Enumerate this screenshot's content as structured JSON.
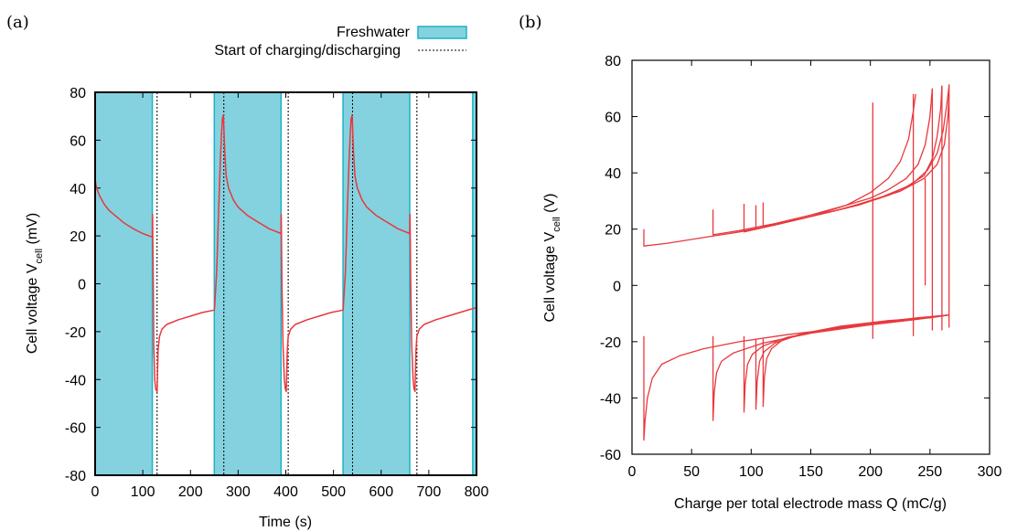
{
  "figure": {
    "panel_a_label": "(a)",
    "panel_b_label": "(b)"
  },
  "colors": {
    "curve": "#e8383d",
    "freshwater_fill": "#84d2e0",
    "freshwater_edge": "#1eb3c5",
    "axis": "#000000"
  },
  "chart_data": [
    {
      "type": "line",
      "panel": "(a)",
      "xlabel": "Time (s)",
      "ylabel_main": "Cell voltage V",
      "ylabel_sub": "cell",
      "ylabel_unit": " (mV)",
      "xlim": [
        0,
        800
      ],
      "ylim": [
        -80,
        80
      ],
      "xticks": [
        0,
        100,
        200,
        300,
        400,
        500,
        600,
        700,
        800
      ],
      "yticks": [
        -80,
        -60,
        -40,
        -20,
        0,
        20,
        40,
        60,
        80
      ],
      "legend": {
        "placement": "top-right, outside",
        "entries": [
          "Freshwater",
          "Start of charging/discharging"
        ]
      },
      "freshwater_intervals": [
        [
          0,
          120
        ],
        [
          250,
          390
        ],
        [
          520,
          660
        ],
        [
          792,
          800
        ]
      ],
      "start_lines": [
        130,
        270,
        405,
        540,
        675
      ],
      "series": [
        {
          "x": [
            0,
            2,
            5,
            10,
            20,
            30,
            45,
            60,
            80,
            100,
            120,
            120.5,
            122,
            123,
            125,
            127,
            130,
            132,
            135,
            140,
            150,
            175,
            200,
            225,
            250,
            250.5,
            255,
            259,
            262,
            265,
            267,
            269,
            272,
            275,
            280,
            290,
            300,
            320,
            340,
            365,
            390,
            390.5,
            392,
            394,
            397,
            399,
            401,
            403,
            405,
            410,
            420,
            445,
            470,
            495,
            520,
            520.5,
            525,
            529,
            532,
            535,
            537,
            539,
            542,
            545,
            550,
            560,
            570,
            590,
            610,
            635,
            660,
            660.5,
            662,
            664,
            667,
            669,
            671,
            673,
            675,
            680,
            690,
            715,
            740,
            765,
            790,
            800
          ],
          "y": [
            44,
            41,
            39,
            36.5,
            33,
            30.5,
            28,
            25.5,
            23,
            21,
            19.5,
            29,
            0,
            -25,
            -40,
            -44,
            -45,
            -28,
            -22,
            -19,
            -17,
            -15,
            -13.5,
            -12,
            -11,
            -10,
            5,
            30,
            48,
            62,
            69,
            70.5,
            55,
            45,
            40,
            35,
            32,
            28.5,
            26,
            23,
            21,
            29,
            0,
            -25,
            -40,
            -44,
            -45,
            -28,
            -22,
            -19,
            -17,
            -15,
            -13.5,
            -12,
            -11,
            -10,
            5,
            30,
            48,
            62,
            69,
            70.5,
            55,
            45,
            40,
            35,
            32,
            28.5,
            26,
            23,
            21,
            29,
            0,
            -25,
            -40,
            -44,
            -45,
            -28,
            -22,
            -19,
            -17,
            -15,
            -13.5,
            -12,
            -10.5,
            -10
          ]
        }
      ]
    },
    {
      "type": "line",
      "panel": "(b)",
      "xlabel": "Charge per total electrode mass Q (mC/g)",
      "ylabel_main": "Cell voltage V",
      "ylabel_sub": "cell",
      "ylabel_unit": " (V)",
      "xlim": [
        0,
        300
      ],
      "ylim": [
        -60,
        80
      ],
      "xticks": [
        0,
        50,
        100,
        150,
        200,
        250,
        300
      ],
      "yticks": [
        -60,
        -40,
        -20,
        0,
        20,
        40,
        60,
        80
      ],
      "series": [
        {
          "x": [
            10,
            10,
            30,
            60,
            90,
            120,
            150,
            180,
            200,
            215,
            225,
            232,
            236,
            238
          ],
          "y": [
            20,
            14,
            15,
            17,
            19,
            21.5,
            24.5,
            28.5,
            33,
            38,
            44,
            52,
            62,
            68
          ]
        },
        {
          "x": [
            68,
            68,
            90,
            120,
            150,
            180,
            200,
            215,
            230,
            240,
            246,
            250,
            252
          ],
          "y": [
            27,
            18,
            19.5,
            22,
            25,
            28.5,
            31,
            34,
            38,
            43,
            50,
            60,
            70
          ]
        },
        {
          "x": [
            94,
            94,
            120,
            150,
            180,
            210,
            230,
            245,
            252,
            256,
            259,
            260
          ],
          "y": [
            29,
            19,
            21.5,
            24.5,
            27.5,
            31.5,
            35,
            39,
            45,
            53,
            63,
            71
          ]
        },
        {
          "x": [
            104,
            104,
            130,
            160,
            190,
            215,
            235,
            248,
            256,
            261,
            264,
            266
          ],
          "y": [
            28.5,
            20,
            22.5,
            25.5,
            28.5,
            32,
            36,
            41,
            47,
            55,
            64,
            71
          ]
        },
        {
          "x": [
            110,
            110,
            140,
            170,
            200,
            225,
            245,
            256,
            262,
            265,
            266
          ],
          "y": [
            29.5,
            21,
            23.5,
            26.5,
            30,
            33.5,
            38,
            43,
            50,
            60,
            68
          ]
        },
        {
          "x": [
            202,
            202
          ],
          "y": [
            65,
            -19
          ]
        },
        {
          "x": [
            236,
            236
          ],
          "y": [
            68,
            -18
          ]
        },
        {
          "x": [
            246,
            246
          ],
          "y": [
            0,
            38
          ]
        },
        {
          "x": [
            252,
            252
          ],
          "y": [
            70,
            -16
          ]
        },
        {
          "x": [
            260,
            260
          ],
          "y": [
            71,
            -16
          ]
        },
        {
          "x": [
            266,
            266
          ],
          "y": [
            71.5,
            -15
          ]
        },
        {
          "x": [
            10,
            10,
            11,
            13,
            17,
            25,
            40,
            60,
            90,
            130,
            170,
            210,
            240,
            266
          ],
          "y": [
            -18,
            -55,
            -48,
            -40,
            -33,
            -28,
            -25,
            -22.5,
            -20,
            -17.5,
            -15.5,
            -13.5,
            -12,
            -10.5
          ]
        },
        {
          "x": [
            68,
            68,
            69,
            71,
            75,
            85,
            110,
            150,
            200,
            240,
            266
          ],
          "y": [
            -18,
            -48,
            -38,
            -31,
            -27,
            -24,
            -20.5,
            -17,
            -14,
            -12,
            -10.5
          ]
        },
        {
          "x": [
            94,
            94,
            95,
            97,
            101,
            110,
            130,
            160,
            200,
            240,
            266
          ],
          "y": [
            -18,
            -45,
            -35,
            -28,
            -24.5,
            -21.5,
            -18.5,
            -16,
            -13.5,
            -11.5,
            -10.5
          ]
        },
        {
          "x": [
            104,
            104,
            105,
            107,
            111,
            120,
            140,
            170,
            210,
            245,
            266
          ],
          "y": [
            -19,
            -44,
            -34,
            -27,
            -23.5,
            -20.5,
            -17.5,
            -15,
            -13,
            -11.5,
            -10.5
          ]
        },
        {
          "x": [
            110,
            110,
            111,
            113,
            117,
            126,
            145,
            175,
            215,
            250,
            266
          ],
          "y": [
            -19,
            -43,
            -33,
            -26,
            -22.5,
            -19.5,
            -17,
            -14.5,
            -12.5,
            -11.5,
            -10.5
          ]
        }
      ]
    }
  ]
}
